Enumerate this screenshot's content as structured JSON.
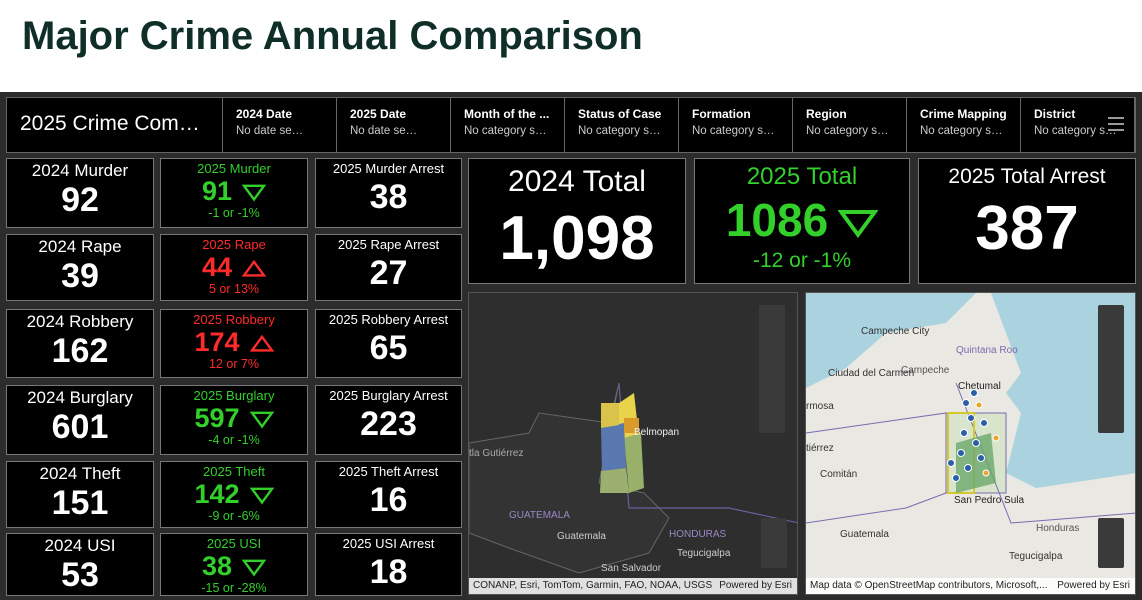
{
  "title": "Major Crime Annual Comparison",
  "header": {
    "selector": "2025 Crime Com…",
    "filters": [
      {
        "label": "2024 Date",
        "value": "No date se…"
      },
      {
        "label": "2025 Date",
        "value": "No date se…"
      },
      {
        "label": "Month of the ...",
        "value": "No category s…"
      },
      {
        "label": "Status of Case",
        "value": "No category s…"
      },
      {
        "label": "Formation",
        "value": "No category s…"
      },
      {
        "label": "Region",
        "value": "No category s…"
      },
      {
        "label": "Crime Mapping",
        "value": "No category s…"
      },
      {
        "label": "District",
        "value": "No category s…"
      }
    ]
  },
  "rows": [
    {
      "c2024": {
        "label": "2024 Murder",
        "value": 92
      },
      "c2025": {
        "label": "2025 Murder",
        "value": 91,
        "change": "-1 or -1%",
        "trend": "down",
        "color": "#33d02c"
      },
      "arrest": {
        "label": "2025 Murder Arrest",
        "value": 38
      }
    },
    {
      "c2024": {
        "label": "2024 Rape",
        "value": 39
      },
      "c2025": {
        "label": "2025 Rape",
        "value": 44,
        "change": "5 or 13%",
        "trend": "up",
        "color": "#ff2b2b"
      },
      "arrest": {
        "label": "2025 Rape Arrest",
        "value": 27
      }
    },
    {
      "c2024": {
        "label": "2024 Robbery",
        "value": 162
      },
      "c2025": {
        "label": "2025 Robbery",
        "value": 174,
        "change": "12 or 7%",
        "trend": "up",
        "color": "#ff2b2b"
      },
      "arrest": {
        "label": "2025 Robbery Arrest",
        "value": 65
      }
    },
    {
      "c2024": {
        "label": "2024 Burglary",
        "value": 601
      },
      "c2025": {
        "label": "2025 Burglary",
        "value": 597,
        "change": "-4 or -1%",
        "trend": "down",
        "color": "#33d02c"
      },
      "arrest": {
        "label": "2025 Burglary Arrest",
        "value": 223
      }
    },
    {
      "c2024": {
        "label": "2024 Theft",
        "value": 151
      },
      "c2025": {
        "label": "2025 Theft",
        "value": 142,
        "change": "-9 or -6%",
        "trend": "down",
        "color": "#33d02c"
      },
      "arrest": {
        "label": "2025 Theft Arrest",
        "value": 16
      }
    },
    {
      "c2024": {
        "label": "2024 USI",
        "value": 53
      },
      "c2025": {
        "label": "2025 USI",
        "value": 38,
        "change": "-15 or -28%",
        "trend": "down",
        "color": "#33d02c"
      },
      "arrest": {
        "label": "2025 USI Arrest",
        "value": 18
      }
    }
  ],
  "totals": [
    {
      "label": "2024 Total",
      "value": "1,098"
    },
    {
      "label": "2025 Total",
      "value": 1086,
      "change": "-12 or -1%",
      "trend": "down",
      "color": "#33d02c"
    },
    {
      "label": "2025 Total Arrest",
      "value": 387
    }
  ],
  "maps": [
    {
      "labels": [
        "tla Gutiérrez",
        "GUATEMALA",
        "Guatemala",
        "HONDURAS",
        "Tegucigalpa",
        "San Salvador",
        "Belmopan"
      ],
      "attribution": "CONANP, Esri, TomTom, Garmin, FAO, NOAA, USGS",
      "powered": "Powered by Esri"
    },
    {
      "labels": [
        "Campeche City",
        "Campeche",
        "Ciudad del Carmen",
        "Quintana Roo",
        "Chetumal",
        "rmosa",
        "tiérrez",
        "Comitán",
        "Guatemala",
        "San Pedro Sula",
        "Honduras",
        "Tegucigalpa"
      ],
      "attribution": "Map data © OpenStreetMap contributors, Microsoft,...",
      "powered": "Powered by Esri"
    }
  ]
}
